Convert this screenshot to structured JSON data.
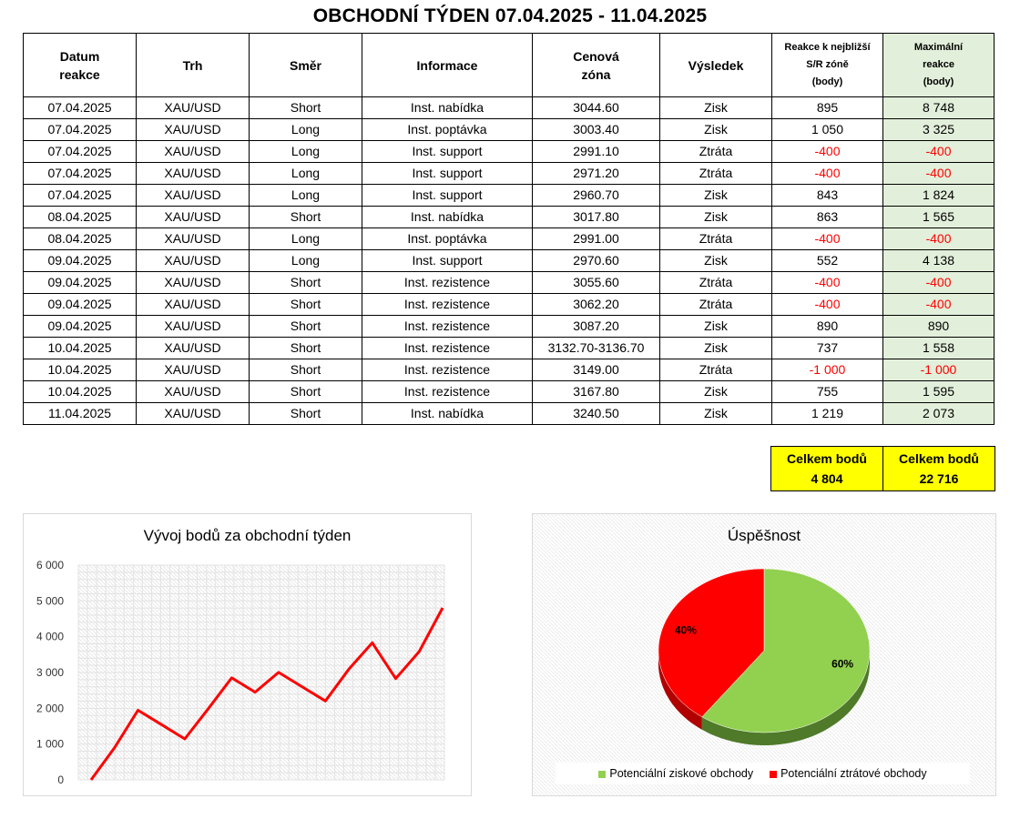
{
  "title": "OBCHODNÍ TÝDEN 07.04.2025 - 11.04.2025",
  "table": {
    "headers": {
      "datum": [
        "Datum",
        "reakce"
      ],
      "trh": "Trh",
      "smer": "Směr",
      "informace": "Informace",
      "zona": [
        "Cenová",
        "zóna"
      ],
      "vysledek": "Výsledek",
      "reakce": [
        "Reakce k nejbližší",
        "S/R zóně",
        "(body)"
      ],
      "max": [
        "Maximální",
        "reakce",
        "(body)"
      ]
    },
    "rows": [
      {
        "date": "07.04.2025",
        "market": "XAU/USD",
        "direction": "Short",
        "info": "Inst. nabídka",
        "zone": "3044.60",
        "result": "Zisk",
        "reaction": "895",
        "max": "8 748"
      },
      {
        "date": "07.04.2025",
        "market": "XAU/USD",
        "direction": "Long",
        "info": "Inst. poptávka",
        "zone": "3003.40",
        "result": "Zisk",
        "reaction": "1 050",
        "max": "3 325"
      },
      {
        "date": "07.04.2025",
        "market": "XAU/USD",
        "direction": "Long",
        "info": "Inst. support",
        "zone": "2991.10",
        "result": "Ztráta",
        "reaction": "-400",
        "max": "-400"
      },
      {
        "date": "07.04.2025",
        "market": "XAU/USD",
        "direction": "Long",
        "info": "Inst. support",
        "zone": "2971.20",
        "result": "Ztráta",
        "reaction": "-400",
        "max": "-400"
      },
      {
        "date": "07.04.2025",
        "market": "XAU/USD",
        "direction": "Long",
        "info": "Inst. support",
        "zone": "2960.70",
        "result": "Zisk",
        "reaction": "843",
        "max": "1 824"
      },
      {
        "date": "08.04.2025",
        "market": "XAU/USD",
        "direction": "Short",
        "info": "Inst. nabídka",
        "zone": "3017.80",
        "result": "Zisk",
        "reaction": "863",
        "max": "1 565"
      },
      {
        "date": "08.04.2025",
        "market": "XAU/USD",
        "direction": "Long",
        "info": "Inst. poptávka",
        "zone": "2991.00",
        "result": "Ztráta",
        "reaction": "-400",
        "max": "-400"
      },
      {
        "date": "09.04.2025",
        "market": "XAU/USD",
        "direction": "Long",
        "info": "Inst. support",
        "zone": "2970.60",
        "result": "Zisk",
        "reaction": "552",
        "max": "4 138"
      },
      {
        "date": "09.04.2025",
        "market": "XAU/USD",
        "direction": "Short",
        "info": "Inst. rezistence",
        "zone": "3055.60",
        "result": "Ztráta",
        "reaction": "-400",
        "max": "-400"
      },
      {
        "date": "09.04.2025",
        "market": "XAU/USD",
        "direction": "Short",
        "info": "Inst. rezistence",
        "zone": "3062.20",
        "result": "Ztráta",
        "reaction": "-400",
        "max": "-400"
      },
      {
        "date": "09.04.2025",
        "market": "XAU/USD",
        "direction": "Short",
        "info": "Inst. rezistence",
        "zone": "3087.20",
        "result": "Zisk",
        "reaction": "890",
        "max": "890"
      },
      {
        "date": "10.04.2025",
        "market": "XAU/USD",
        "direction": "Short",
        "info": "Inst. rezistence",
        "zone": "3132.70-3136.70",
        "result": "Zisk",
        "reaction": "737",
        "max": "1 558"
      },
      {
        "date": "10.04.2025",
        "market": "XAU/USD",
        "direction": "Short",
        "info": "Inst. rezistence",
        "zone": "3149.00",
        "result": "Ztráta",
        "reaction": "-1 000",
        "max": "-1 000"
      },
      {
        "date": "10.04.2025",
        "market": "XAU/USD",
        "direction": "Short",
        "info": "Inst. rezistence",
        "zone": "3167.80",
        "result": "Zisk",
        "reaction": "755",
        "max": "1 595"
      },
      {
        "date": "11.04.2025",
        "market": "XAU/USD",
        "direction": "Short",
        "info": "Inst. nabídka",
        "zone": "3240.50",
        "result": "Zisk",
        "reaction": "1 219",
        "max": "2 073"
      }
    ]
  },
  "totals": {
    "reaction": {
      "label": "Celkem bodů",
      "value": "4 804"
    },
    "max": {
      "label": "Celkem bodů",
      "value": "22 716"
    }
  },
  "colors": {
    "negative": "#ff0000",
    "max_column_fill": "#e2efda",
    "totals_fill": "#ffff00",
    "line": "#ff0000",
    "pie_profit": "#92d050",
    "pie_loss": "#ff0000"
  },
  "chart_data": [
    {
      "type": "line",
      "title": "Vývoj bodů za obchodní týden",
      "x": [
        0,
        1,
        2,
        3,
        4,
        5,
        6,
        7,
        8,
        9,
        10,
        11,
        12,
        13,
        14,
        15
      ],
      "series": [
        {
          "values": [
            0,
            895,
            1945,
            1545,
            1145,
            1988,
            2851,
            2451,
            3003,
            2603,
            2203,
            3093,
            3830,
            2830,
            3585,
            4804
          ]
        }
      ],
      "ylim": [
        0,
        6000
      ],
      "yticks": [
        0,
        1000,
        2000,
        3000,
        4000,
        5000,
        6000
      ],
      "ytick_labels": [
        "0",
        "1 000",
        "2 000",
        "3 000",
        "4 000",
        "5 000",
        "6 000"
      ],
      "grid": true,
      "xlabel": "",
      "ylabel": ""
    },
    {
      "type": "pie",
      "title": "Úspěšnost",
      "labels": [
        "Potenciální ziskové obchody",
        "Potenciální ztrátové obchody"
      ],
      "values": [
        60,
        40
      ],
      "value_labels": [
        "60%",
        "40%"
      ],
      "legend": "bottom"
    }
  ]
}
